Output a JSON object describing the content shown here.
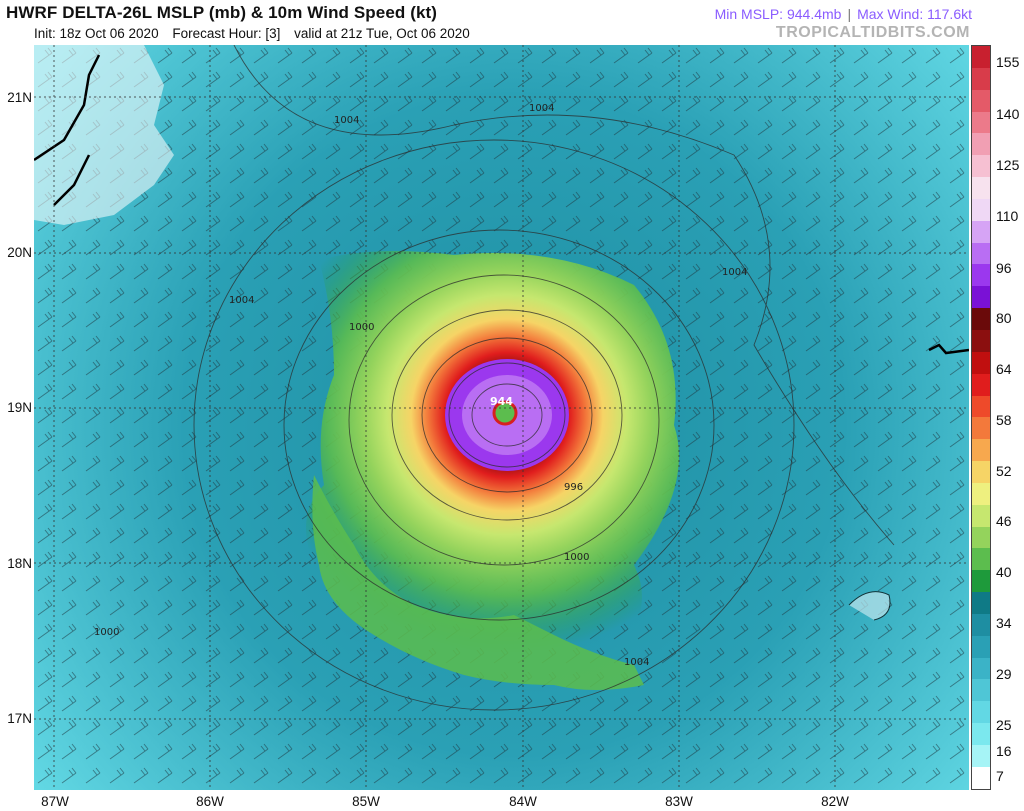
{
  "header": {
    "title": "HWRF DELTA-26L MSLP (mb) & 10m Wind Speed (kt)",
    "init": "Init: 18z Oct 06 2020",
    "forecast_hour": "Forecast Hour: [3]",
    "valid": "valid at 21z Tue, Oct 06 2020",
    "min_mslp": "Min MSLP: 944.4mb",
    "max_wind": "Max Wind: 117.6kt",
    "brand": "TROPICALTIDBITS.COM"
  },
  "axes": {
    "lat_labels": [
      "21N",
      "20N",
      "19N",
      "18N",
      "17N"
    ],
    "lon_labels": [
      "87W",
      "86W",
      "85W",
      "84W",
      "83W",
      "82W"
    ]
  },
  "colorbar": {
    "labels": [
      "155",
      "140",
      "125",
      "110",
      "96",
      "80",
      "64",
      "58",
      "52",
      "46",
      "40",
      "34",
      "29",
      "25",
      "16",
      "7"
    ],
    "colors": [
      "#c8202f",
      "#d83c4a",
      "#e45a68",
      "#ec7a8a",
      "#f19fb3",
      "#f6c0d2",
      "#f7e2ee",
      "#efd8f5",
      "#d6a4f5",
      "#b96ef3",
      "#9b38ee",
      "#7a11d6",
      "#6a0a0a",
      "#8b0f0f",
      "#c00f0f",
      "#e01d1d",
      "#ee4a2a",
      "#f3793b",
      "#f7a84e",
      "#f6d466",
      "#eef07f",
      "#c6e76f",
      "#94d35c",
      "#5cbd4e",
      "#1e9a3b",
      "#0f7a86",
      "#1e8ea2",
      "#2aa0b5",
      "#3bb3c7",
      "#4fc6d6",
      "#62d8e4",
      "#7be8ee",
      "#a6f4f6",
      "#ffffff"
    ]
  },
  "map": {
    "center_pressure_label": "944",
    "isobar_labels": [
      "1004",
      "1004",
      "1004",
      "1004",
      "1000",
      "1000",
      "996",
      "1000",
      "1004"
    ]
  }
}
